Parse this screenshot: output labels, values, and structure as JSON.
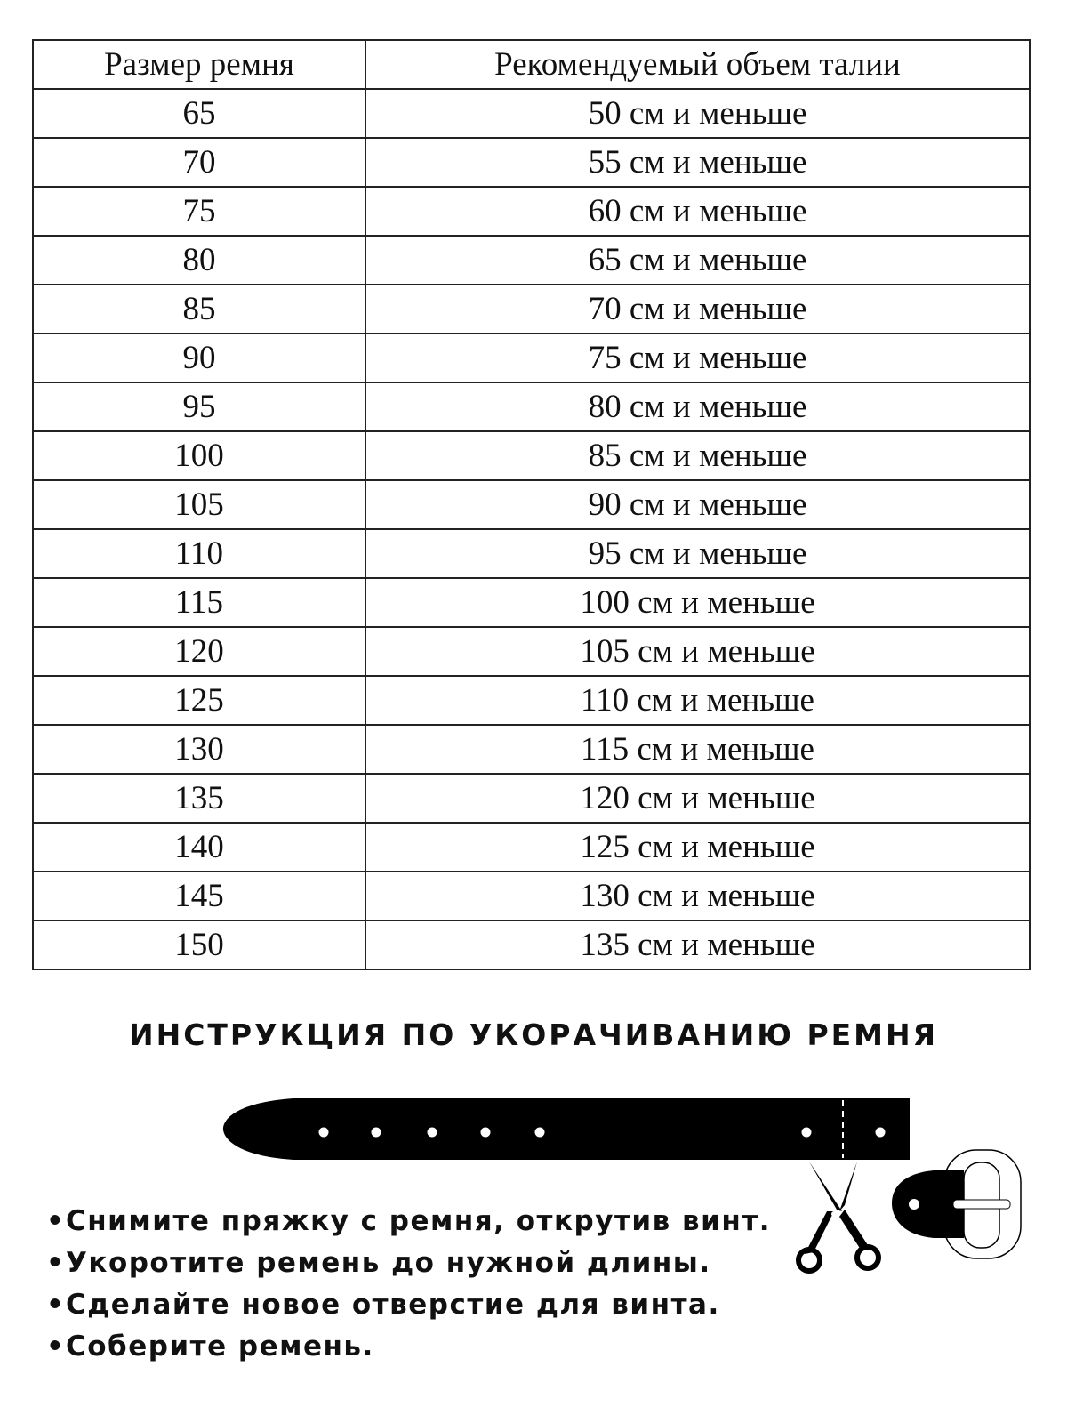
{
  "table": {
    "headers": [
      "Размер ремня",
      "Рекомендуемый объем талии"
    ],
    "rows": [
      [
        "65",
        "50 см и меньше"
      ],
      [
        "70",
        "55 см и меньше"
      ],
      [
        "75",
        "60 см и меньше"
      ],
      [
        "80",
        "65 см и меньше"
      ],
      [
        "85",
        "70 см и меньше"
      ],
      [
        "90",
        "75 см и меньше"
      ],
      [
        "95",
        "80 см и меньше"
      ],
      [
        "100",
        "85 см и меньше"
      ],
      [
        "105",
        "90 см и меньше"
      ],
      [
        "110",
        "95 см и меньше"
      ],
      [
        "115",
        "100 см и меньше"
      ],
      [
        "120",
        "105 см и меньше"
      ],
      [
        "125",
        "110 см и меньше"
      ],
      [
        "130",
        "115 см и меньше"
      ],
      [
        "135",
        "120 см и меньше"
      ],
      [
        "140",
        "125 см и меньше"
      ],
      [
        "145",
        "130 см и меньше"
      ],
      [
        "150",
        "135 см и меньше"
      ]
    ]
  },
  "instructions": {
    "title": "ИНСТРУКЦИЯ ПО УКОРАЧИВАНИЮ РЕМНЯ",
    "bullet": "•",
    "steps": [
      "Снимите пряжку с ремня, открутив винт.",
      "Укоротите ремень до нужной длины.",
      "Сделайте новое отверстие для винта.",
      "Соберите ремень."
    ]
  },
  "illustration": {
    "icons": [
      "belt-icon",
      "scissors-icon",
      "buckle-icon"
    ],
    "color": "#000000"
  }
}
